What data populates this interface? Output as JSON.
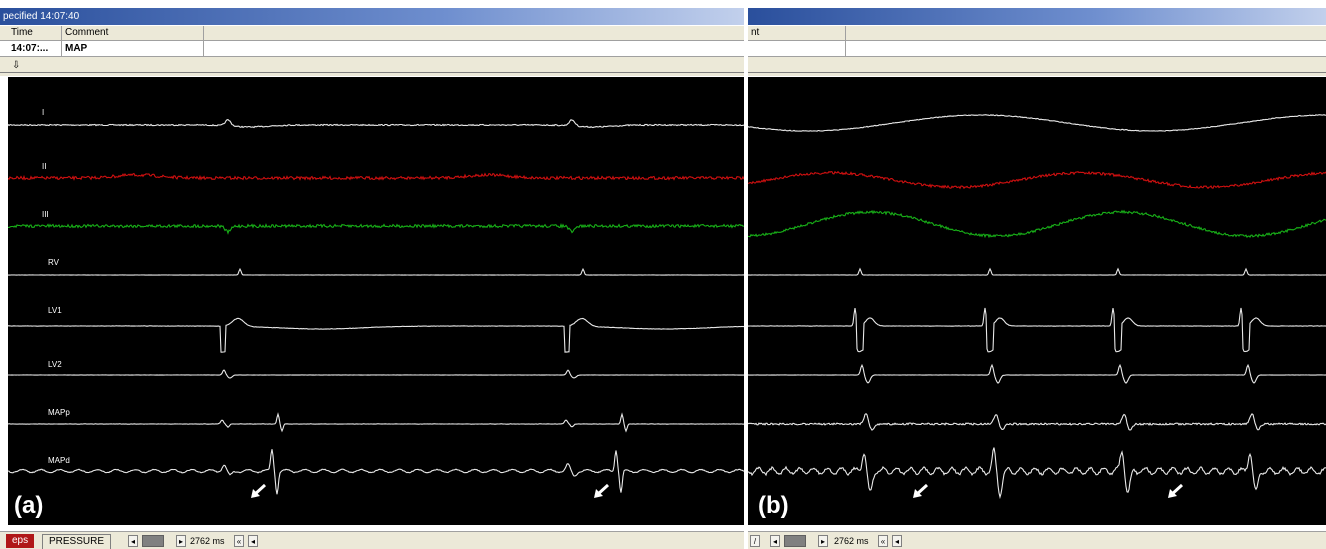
{
  "panel_a": {
    "title": "pecified  14:07:40",
    "columns": [
      "Time",
      "Comment"
    ],
    "row": {
      "time": "14:07:...",
      "comment": "MAP"
    },
    "panel_letter": "(a)",
    "tabs": [
      "eps",
      "PRESSURE"
    ],
    "duration": "2762 ms",
    "channels": [
      "I",
      "II",
      "III",
      "RV",
      "LV1",
      "LV2",
      "MAPp",
      "MAPd"
    ]
  },
  "panel_b": {
    "title": "",
    "columns": [
      "nt"
    ],
    "panel_letter": "(b)",
    "duration": "2762 ms"
  },
  "colors": {
    "background": "#000000",
    "trace_white": "#e8e8e8",
    "trace_red": "#d01010",
    "trace_green": "#18b018",
    "arrow": "#ffffff",
    "tab_active": "#b01818"
  },
  "icons": {
    "down_arrow": "⇩",
    "arrow_marker": "annotation-arrow-icon"
  }
}
